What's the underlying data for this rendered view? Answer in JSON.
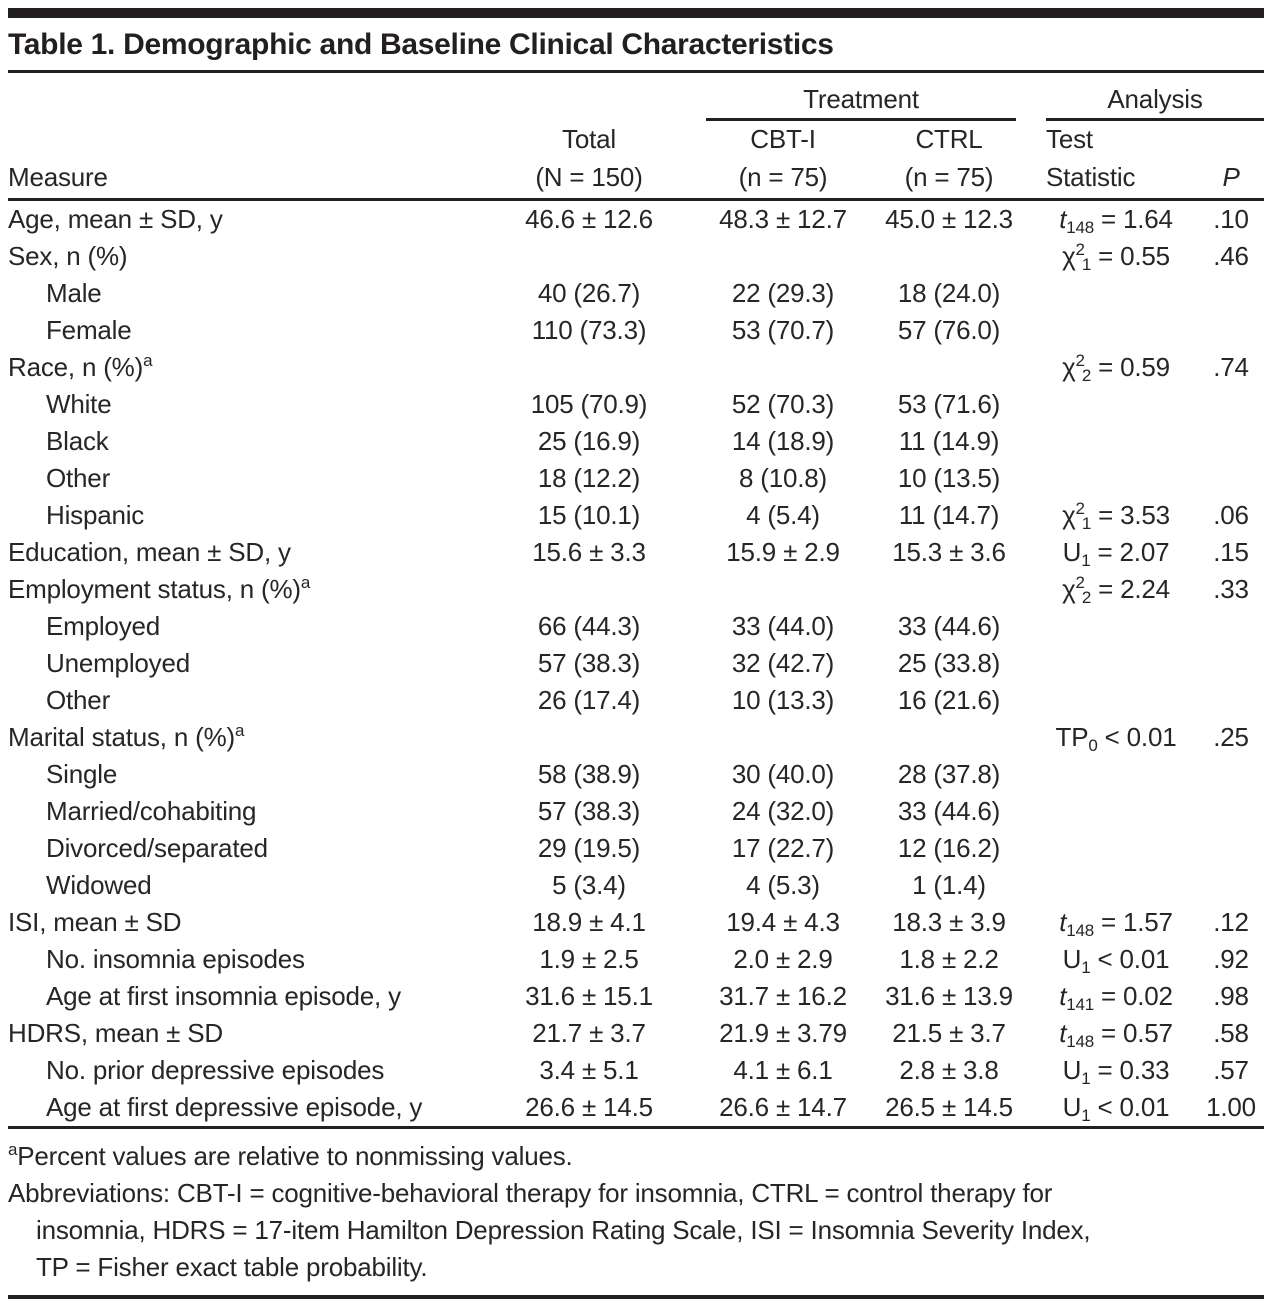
{
  "title": "Table 1. Demographic and Baseline Clinical Characteristics",
  "colors": {
    "text": "#262626",
    "rule": "#231F20",
    "background": "#FFFFFF"
  },
  "header": {
    "group_treatment": "Treatment",
    "group_analysis": "Analysis",
    "col_measure": "Measure",
    "col_total_line1": "Total",
    "col_total_line2": "(N = 150)",
    "col_cbti_line1": "CBT-I",
    "col_cbti_line2": "(n = 75)",
    "col_ctrl_line1": "CTRL",
    "col_ctrl_line2": "(n = 75)",
    "col_test_line1": "Test",
    "col_test_line2": "Statistic",
    "col_p": "P"
  },
  "rows": [
    {
      "label": "Age, mean ± SD, y",
      "indent": false,
      "marker": "",
      "total": "46.6 ± 12.6",
      "cbti": "48.3 ± 12.7",
      "ctrl": "45.0 ± 12.3",
      "stat": [
        [
          "t",
          "i"
        ],
        [
          "148",
          "sub"
        ],
        [
          " = 1.64",
          ""
        ]
      ],
      "p": ".10"
    },
    {
      "label": "Sex, n (%)",
      "indent": false,
      "marker": "",
      "total": "",
      "cbti": "",
      "ctrl": "",
      "stat": [
        [
          "χ",
          ""
        ],
        [
          "2",
          "sup"
        ],
        [
          "1",
          "sub"
        ],
        [
          " = 0.55",
          ""
        ]
      ],
      "p": ".46"
    },
    {
      "label": "Male",
      "indent": true,
      "marker": "",
      "total": "40 (26.7)",
      "cbti": "22 (29.3)",
      "ctrl": "18 (24.0)",
      "stat": [],
      "p": ""
    },
    {
      "label": "Female",
      "indent": true,
      "marker": "",
      "total": "110 (73.3)",
      "cbti": "53 (70.7)",
      "ctrl": "57 (76.0)",
      "stat": [],
      "p": ""
    },
    {
      "label": "Race, n (%)",
      "indent": false,
      "marker": "a",
      "total": "",
      "cbti": "",
      "ctrl": "",
      "stat": [
        [
          "χ",
          ""
        ],
        [
          "2",
          "sup"
        ],
        [
          "2",
          "sub"
        ],
        [
          " = 0.59",
          ""
        ]
      ],
      "p": ".74"
    },
    {
      "label": "White",
      "indent": true,
      "marker": "",
      "total": "105 (70.9)",
      "cbti": "52 (70.3)",
      "ctrl": "53 (71.6)",
      "stat": [],
      "p": ""
    },
    {
      "label": "Black",
      "indent": true,
      "marker": "",
      "total": "25 (16.9)",
      "cbti": "14 (18.9)",
      "ctrl": "11 (14.9)",
      "stat": [],
      "p": ""
    },
    {
      "label": "Other",
      "indent": true,
      "marker": "",
      "total": "18 (12.2)",
      "cbti": "8 (10.8)",
      "ctrl": "10 (13.5)",
      "stat": [],
      "p": ""
    },
    {
      "label": "Hispanic",
      "indent": true,
      "marker": "",
      "total": "15 (10.1)",
      "cbti": "4 (5.4)",
      "ctrl": "11 (14.7)",
      "stat": [
        [
          "χ",
          ""
        ],
        [
          "2",
          "sup"
        ],
        [
          "1",
          "sub"
        ],
        [
          " = 3.53",
          ""
        ]
      ],
      "p": ".06"
    },
    {
      "label": "Education, mean ± SD, y",
      "indent": false,
      "marker": "",
      "total": "15.6 ± 3.3",
      "cbti": "15.9 ± 2.9",
      "ctrl": "15.3 ± 3.6",
      "stat": [
        [
          "U",
          ""
        ],
        [
          "1",
          "sub"
        ],
        [
          " = 2.07",
          ""
        ]
      ],
      "p": ".15"
    },
    {
      "label": "Employment status, n (%)",
      "indent": false,
      "marker": "a",
      "total": "",
      "cbti": "",
      "ctrl": "",
      "stat": [
        [
          "χ",
          ""
        ],
        [
          "2",
          "sup"
        ],
        [
          "2",
          "sub"
        ],
        [
          " = 2.24",
          ""
        ]
      ],
      "p": ".33"
    },
    {
      "label": "Employed",
      "indent": true,
      "marker": "",
      "total": "66 (44.3)",
      "cbti": "33 (44.0)",
      "ctrl": "33 (44.6)",
      "stat": [],
      "p": ""
    },
    {
      "label": "Unemployed",
      "indent": true,
      "marker": "",
      "total": "57 (38.3)",
      "cbti": "32 (42.7)",
      "ctrl": "25 (33.8)",
      "stat": [],
      "p": ""
    },
    {
      "label": "Other",
      "indent": true,
      "marker": "",
      "total": "26 (17.4)",
      "cbti": "10 (13.3)",
      "ctrl": "16 (21.6)",
      "stat": [],
      "p": ""
    },
    {
      "label": "Marital status, n (%)",
      "indent": false,
      "marker": "a",
      "total": "",
      "cbti": "",
      "ctrl": "",
      "stat": [
        [
          "TP",
          ""
        ],
        [
          "0",
          "sub"
        ],
        [
          " < 0.01",
          ""
        ]
      ],
      "p": ".25"
    },
    {
      "label": "Single",
      "indent": true,
      "marker": "",
      "total": "58 (38.9)",
      "cbti": "30 (40.0)",
      "ctrl": "28 (37.8)",
      "stat": [],
      "p": ""
    },
    {
      "label": "Married/cohabiting",
      "indent": true,
      "marker": "",
      "total": "57 (38.3)",
      "cbti": "24 (32.0)",
      "ctrl": "33 (44.6)",
      "stat": [],
      "p": ""
    },
    {
      "label": "Divorced/separated",
      "indent": true,
      "marker": "",
      "total": "29 (19.5)",
      "cbti": "17 (22.7)",
      "ctrl": "12 (16.2)",
      "stat": [],
      "p": ""
    },
    {
      "label": "Widowed",
      "indent": true,
      "marker": "",
      "total": "5 (3.4)",
      "cbti": "4 (5.3)",
      "ctrl": "1 (1.4)",
      "stat": [],
      "p": ""
    },
    {
      "label": "ISI, mean ± SD",
      "indent": false,
      "marker": "",
      "total": "18.9 ± 4.1",
      "cbti": "19.4 ± 4.3",
      "ctrl": "18.3 ± 3.9",
      "stat": [
        [
          "t",
          "i"
        ],
        [
          "148",
          "sub"
        ],
        [
          " = 1.57",
          ""
        ]
      ],
      "p": ".12"
    },
    {
      "label": "No. insomnia episodes",
      "indent": true,
      "marker": "",
      "total": "1.9 ± 2.5",
      "cbti": "2.0 ± 2.9",
      "ctrl": "1.8 ± 2.2",
      "stat": [
        [
          "U",
          ""
        ],
        [
          "1",
          "sub"
        ],
        [
          " < 0.01",
          ""
        ]
      ],
      "p": ".92"
    },
    {
      "label": "Age at first insomnia episode, y",
      "indent": true,
      "marker": "",
      "total": "31.6 ± 15.1",
      "cbti": "31.7 ± 16.2",
      "ctrl": "31.6 ± 13.9",
      "stat": [
        [
          "t",
          "i"
        ],
        [
          "141",
          "sub"
        ],
        [
          " = 0.02",
          ""
        ]
      ],
      "p": ".98"
    },
    {
      "label": "HDRS, mean ± SD",
      "indent": false,
      "marker": "",
      "total": "21.7 ± 3.7",
      "cbti": "21.9 ± 3.79",
      "ctrl": "21.5 ± 3.7",
      "stat": [
        [
          "t",
          "i"
        ],
        [
          "148",
          "sub"
        ],
        [
          " = 0.57",
          ""
        ]
      ],
      "p": ".58"
    },
    {
      "label": "No. prior depressive episodes",
      "indent": true,
      "marker": "",
      "total": "3.4 ± 5.1",
      "cbti": "4.1 ± 6.1",
      "ctrl": "2.8 ± 3.8",
      "stat": [
        [
          "U",
          ""
        ],
        [
          "1",
          "sub"
        ],
        [
          " = 0.33",
          ""
        ]
      ],
      "p": ".57"
    },
    {
      "label": "Age at first depressive episode, y",
      "indent": true,
      "marker": "",
      "total": "26.6 ± 14.5",
      "cbti": "26.6 ± 14.7",
      "ctrl": "26.5 ± 14.5",
      "stat": [
        [
          "U",
          ""
        ],
        [
          "1",
          "sub"
        ],
        [
          " < 0.01",
          ""
        ]
      ],
      "p": "1.00"
    }
  ],
  "footnotes": {
    "marker": "a",
    "percent_note": "Percent values are relative to nonmissing values.",
    "abbreviation_lines": [
      "Abbreviations: CBT-I = cognitive-behavioral therapy for insomnia, CTRL = control therapy for",
      "insomnia, HDRS = 17-item Hamilton Depression Rating Scale, ISI = Insomnia Severity Index,",
      "TP = Fisher exact table probability."
    ]
  }
}
